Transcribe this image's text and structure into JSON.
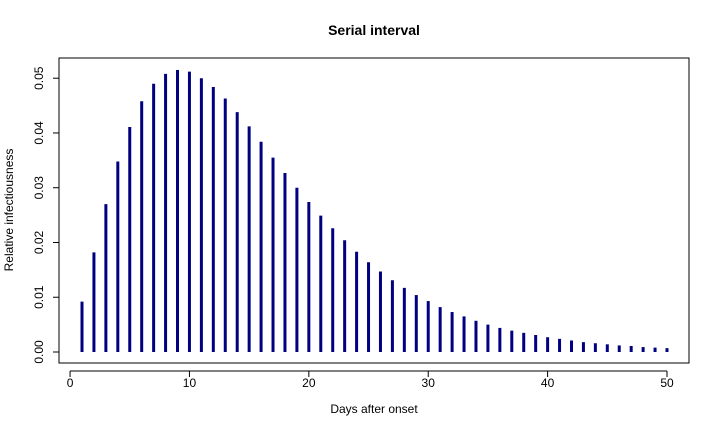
{
  "chart_data": {
    "type": "bar",
    "title": "Serial interval",
    "xlabel": "Days after onset",
    "ylabel": "Relative infectiousness",
    "xlim": [
      1,
      50
    ],
    "ylim": [
      0,
      0.0515
    ],
    "x_ticks": [
      0,
      10,
      20,
      30,
      40,
      50
    ],
    "y_ticks": [
      0.0,
      0.01,
      0.02,
      0.03,
      0.04,
      0.05
    ],
    "y_tick_labels": [
      "0.00",
      "0.01",
      "0.02",
      "0.03",
      "0.04",
      "0.05"
    ],
    "bar_color": "#000080",
    "grid": false,
    "x": [
      1,
      2,
      3,
      4,
      5,
      6,
      7,
      8,
      9,
      10,
      11,
      12,
      13,
      14,
      15,
      16,
      17,
      18,
      19,
      20,
      21,
      22,
      23,
      24,
      25,
      26,
      27,
      28,
      29,
      30,
      31,
      32,
      33,
      34,
      35,
      36,
      37,
      38,
      39,
      40,
      41,
      42,
      43,
      44,
      45,
      46,
      47,
      48,
      49,
      50
    ],
    "values": [
      0.0092,
      0.0182,
      0.027,
      0.0348,
      0.0411,
      0.0458,
      0.049,
      0.0508,
      0.0515,
      0.0512,
      0.05,
      0.0484,
      0.0463,
      0.0438,
      0.0412,
      0.0384,
      0.0355,
      0.0327,
      0.03,
      0.0274,
      0.0249,
      0.0226,
      0.0204,
      0.0183,
      0.0164,
      0.0147,
      0.0131,
      0.0117,
      0.0104,
      0.0093,
      0.0082,
      0.0073,
      0.0065,
      0.0057,
      0.005,
      0.0044,
      0.0039,
      0.0035,
      0.0031,
      0.0027,
      0.0024,
      0.0021,
      0.0018,
      0.0016,
      0.0014,
      0.0012,
      0.0011,
      0.0009,
      0.0008,
      0.0007
    ]
  }
}
